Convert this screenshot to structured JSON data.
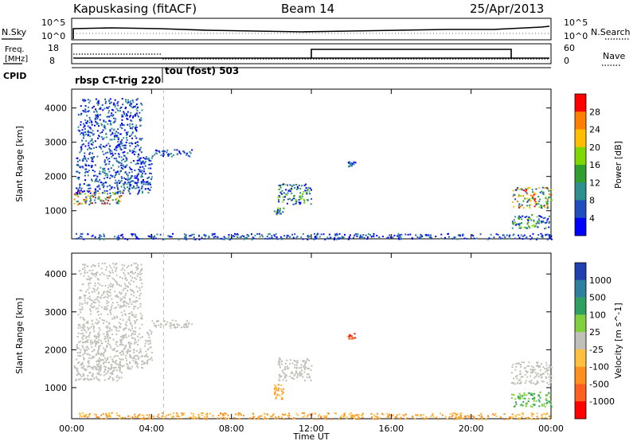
{
  "header": {
    "station": "Kapuskasing (fitACF)",
    "beam": "Beam 14",
    "date": "25/Apr/2013"
  },
  "labels": {
    "nsky": "N.Sky",
    "nsearch": "N.Search",
    "freq_top": "Freq.",
    "freq_unit": "[MHz]",
    "nave": "Nave",
    "cpid": "CPID",
    "nsky_ticks": [
      "10^5",
      "10^0"
    ],
    "nsearch_ticks": [
      "10^5",
      "10^0"
    ],
    "freq_ticks": [
      "18",
      "8"
    ],
    "nave_ticks": [
      "60",
      "0"
    ],
    "cpid_programs": [
      "rbsp CT-trig 220",
      "tou (fost) 503"
    ]
  },
  "chart_data": [
    {
      "type": "heatmap",
      "panel": "power",
      "ylabel": "Slant Range [km]",
      "xlabel": "Time UT",
      "x_ticks": [
        "00:00",
        "04:00",
        "08:00",
        "12:00",
        "16:00",
        "20:00",
        "00:00"
      ],
      "y_ticks": [
        1000,
        2000,
        3000,
        4000
      ],
      "ylim": [
        180,
        4550
      ],
      "xlim_hours": [
        0,
        24
      ],
      "colorbar": {
        "label": "Power [dB]",
        "ticks": [
          "28",
          "24",
          "20",
          "16",
          "12",
          "8",
          "4"
        ],
        "colors": [
          "#ff0000",
          "#ff7f00",
          "#ffbf00",
          "#7fd700",
          "#2f9f2f",
          "#2f8f8f",
          "#1f4fbf",
          "#0000ff"
        ]
      },
      "echo_regions": [
        {
          "t0": 0.1,
          "t1": 2.5,
          "r0": 1200,
          "r1": 1600,
          "level": "high"
        },
        {
          "t0": 0.2,
          "t1": 4.0,
          "r0": 1500,
          "r1": 2600,
          "level": "low"
        },
        {
          "t0": 0.3,
          "t1": 3.5,
          "r0": 2600,
          "r1": 4300,
          "level": "low"
        },
        {
          "t0": 4.0,
          "t1": 6.0,
          "r0": 2600,
          "r1": 2800,
          "level": "low"
        },
        {
          "t0": 10.3,
          "t1": 12.0,
          "r0": 1200,
          "r1": 1800,
          "level": "mid"
        },
        {
          "t0": 10.1,
          "t1": 10.6,
          "r0": 900,
          "r1": 1100,
          "level": "mid"
        },
        {
          "t0": 13.8,
          "t1": 14.2,
          "r0": 2300,
          "r1": 2450,
          "level": "low"
        },
        {
          "t0": 22.0,
          "t1": 24.0,
          "r0": 1100,
          "r1": 1700,
          "level": "high"
        },
        {
          "t0": 22.0,
          "t1": 24.0,
          "r0": 500,
          "r1": 900,
          "level": "mid"
        },
        {
          "t0": 0.2,
          "t1": 24.0,
          "r0": 180,
          "r1": 350,
          "level": "low"
        }
      ]
    },
    {
      "type": "heatmap",
      "panel": "velocity",
      "ylabel": "Slant Range [km]",
      "xlabel": "Time UT",
      "x_ticks": [
        "00:00",
        "04:00",
        "08:00",
        "12:00",
        "16:00",
        "20:00",
        "00:00"
      ],
      "y_ticks": [
        1000,
        2000,
        3000,
        4000
      ],
      "ylim": [
        180,
        4550
      ],
      "xlim_hours": [
        0,
        24
      ],
      "colorbar": {
        "label": "Velocity [m s^-1]",
        "ticks": [
          "1000",
          "500",
          "100",
          "25",
          "-25",
          "-100",
          "-500",
          "-1000"
        ],
        "colors": [
          "#2040b0",
          "#2f7f9f",
          "#2fa05f",
          "#7fcf3f",
          "#c0c0b8",
          "#ffbf3f",
          "#ff8f1f",
          "#ff5f1f",
          "#ff0000"
        ]
      },
      "echo_regions": [
        {
          "t0": 0.1,
          "t1": 2.5,
          "r0": 1200,
          "r1": 1600,
          "level": "ground"
        },
        {
          "t0": 0.2,
          "t1": 4.0,
          "r0": 1500,
          "r1": 2600,
          "level": "ground"
        },
        {
          "t0": 0.3,
          "t1": 3.5,
          "r0": 2600,
          "r1": 4300,
          "level": "ground"
        },
        {
          "t0": 4.0,
          "t1": 6.0,
          "r0": 2600,
          "r1": 2800,
          "level": "ground"
        },
        {
          "t0": 10.3,
          "t1": 12.0,
          "r0": 1200,
          "r1": 1800,
          "level": "ground"
        },
        {
          "t0": 10.1,
          "t1": 10.6,
          "r0": 700,
          "r1": 1100,
          "level": "neg"
        },
        {
          "t0": 13.8,
          "t1": 14.2,
          "r0": 2300,
          "r1": 2450,
          "level": "neg_strong"
        },
        {
          "t0": 22.0,
          "t1": 24.0,
          "r0": 1100,
          "r1": 1700,
          "level": "ground"
        },
        {
          "t0": 22.0,
          "t1": 24.0,
          "r0": 500,
          "r1": 900,
          "level": "pos"
        },
        {
          "t0": 0.2,
          "t1": 24.0,
          "r0": 180,
          "r1": 350,
          "level": "neg"
        }
      ]
    }
  ]
}
